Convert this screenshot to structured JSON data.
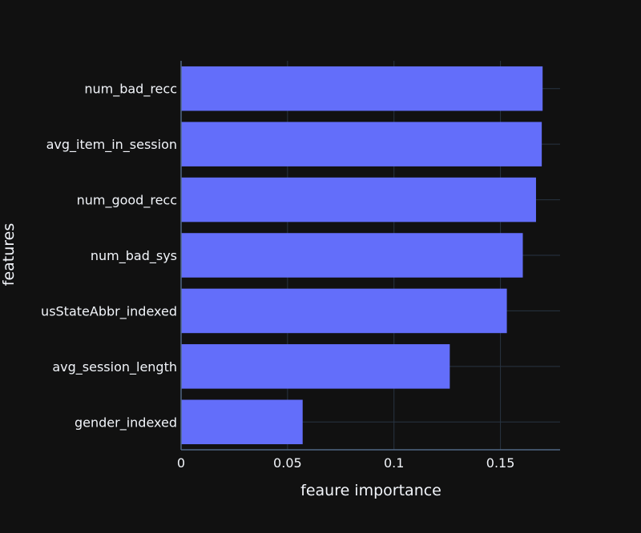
{
  "chart_data": {
    "type": "bar",
    "orientation": "horizontal",
    "categories": [
      "num_bad_recc",
      "avg_item_in_session",
      "num_good_recc",
      "num_bad_sys",
      "usStateAbbr_indexed",
      "avg_session_length",
      "gender_indexed"
    ],
    "values": [
      0.1698,
      0.1694,
      0.1667,
      0.1605,
      0.153,
      0.1262,
      0.0571
    ],
    "xlabel": "feaure importance",
    "ylabel": "features",
    "xlim": [
      0,
      0.178
    ],
    "xticks": [
      0,
      0.05,
      0.1,
      0.15
    ],
    "xtick_labels": [
      "0",
      "0.05",
      "0.1",
      "0.15"
    ],
    "grid": true,
    "colors": {
      "bar": "#636efa",
      "background": "#111111",
      "grid": "#283442",
      "axis_line": "#506784",
      "text": "#f2f5fa"
    }
  }
}
